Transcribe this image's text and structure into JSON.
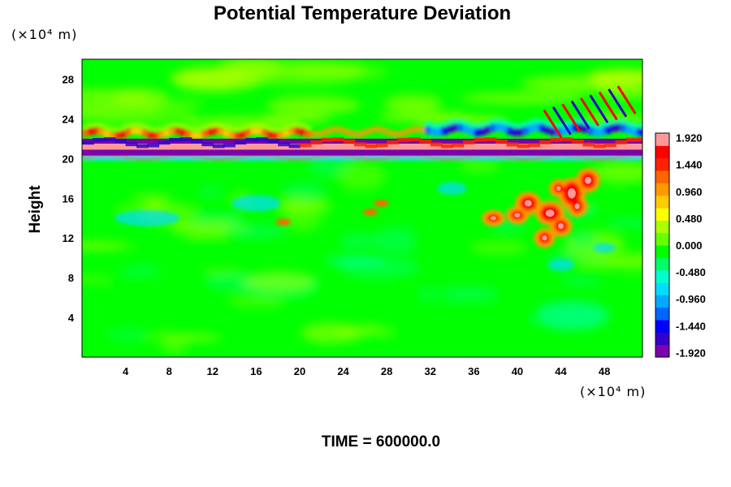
{
  "chart_data": {
    "type": "heatmap",
    "title": "Potential Temperature Deviation",
    "ylabel": "Height",
    "y_unit": "(×10⁴ m)",
    "x_unit": "(×10⁴ m)",
    "footer": "TIME = 600000.0",
    "xlim": [
      0,
      51.5
    ],
    "ylim": [
      0,
      30
    ],
    "x_ticks": [
      "4",
      "8",
      "12",
      "16",
      "20",
      "24",
      "28",
      "32",
      "36",
      "40",
      "44",
      "48"
    ],
    "y_ticks": [
      "4",
      "8",
      "12",
      "16",
      "20",
      "24",
      "28"
    ],
    "x_tick_values": [
      4,
      8,
      12,
      16,
      20,
      24,
      28,
      32,
      36,
      40,
      44,
      48
    ],
    "y_tick_values": [
      4,
      8,
      12,
      16,
      20,
      24,
      28
    ],
    "colorbar": {
      "tick_labels": [
        "1.920",
        "1.440",
        "0.960",
        "0.480",
        "0.000",
        "-0.480",
        "-0.960",
        "-1.440",
        "-1.920"
      ],
      "tick_values": [
        1.92,
        1.44,
        0.96,
        0.48,
        0.0,
        -0.48,
        -0.96,
        -1.44,
        -1.92
      ],
      "range": [
        -2.0,
        2.0
      ]
    },
    "features": [
      {
        "name": "tropopause band",
        "x": [
          0,
          51.5
        ],
        "y": [
          20.3,
          21.6
        ],
        "value_range": [
          -1.92,
          1.92
        ]
      },
      {
        "name": "upper warm layer",
        "x": [
          0,
          20
        ],
        "y": [
          22.0,
          23.0
        ],
        "value": 1.0
      },
      {
        "name": "upper cold layer",
        "x": [
          32,
          51.5
        ],
        "y": [
          22.5,
          23.5
        ],
        "value": -1.4
      },
      {
        "name": "gravity waves",
        "x": [
          44,
          51.5
        ],
        "y": [
          22.0,
          25.5
        ],
        "value_range": [
          -1.9,
          1.9
        ]
      },
      {
        "name": "convective plume",
        "x": [
          39,
          48
        ],
        "y": [
          11,
          18.5
        ],
        "value": 1.9
      },
      {
        "name": "lower cool patch",
        "x": [
          42,
          46
        ],
        "y": [
          8.5,
          10.5
        ],
        "value": -1.0
      }
    ]
  },
  "colors": {
    "background": "#00ff00",
    "scale": [
      "#7f00aa",
      "#3300cc",
      "#0000ff",
      "#0066ff",
      "#00aaff",
      "#00ddff",
      "#00ffcc",
      "#00ff66",
      "#00ff00",
      "#66ff00",
      "#aaff00",
      "#ffff00",
      "#ffcc00",
      "#ff9900",
      "#ff6600",
      "#ff2200",
      "#ff0000",
      "#ff9999"
    ]
  }
}
